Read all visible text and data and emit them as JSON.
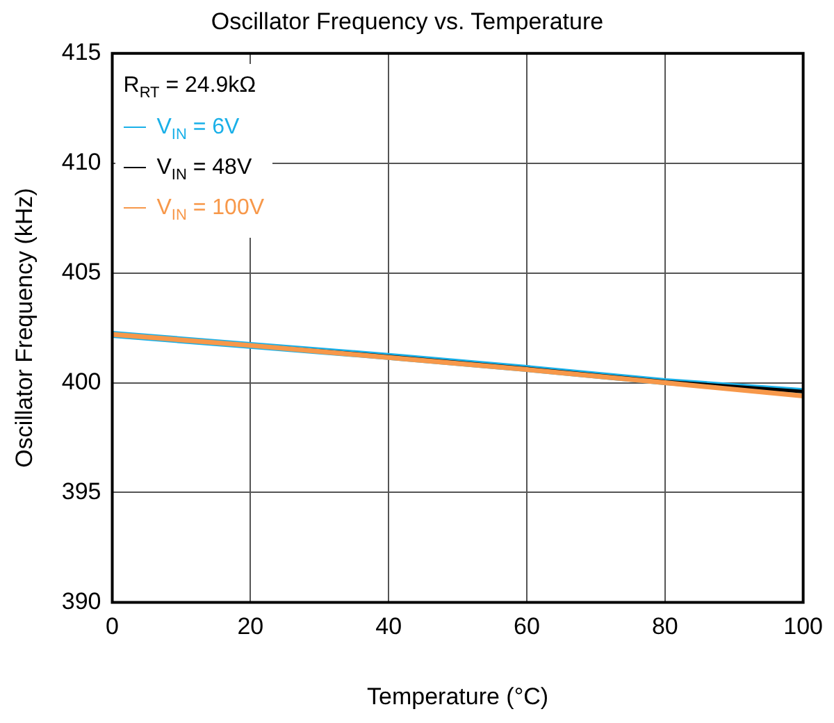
{
  "chart_data": {
    "type": "line",
    "title": "Oscillator Frequency vs. Temperature",
    "xlabel": "Temperature (°C)",
    "ylabel": "Oscillator Frequency (kHz)",
    "x": [
      0,
      20,
      40,
      60,
      80,
      100
    ],
    "series": [
      {
        "name": "V$_{IN}$ = 6V",
        "color": "#1ab0e8",
        "values": [
          402.2,
          401.7,
          401.2,
          400.65,
          400.05,
          399.6
        ]
      },
      {
        "name": "V$_{IN}$ = 48V",
        "color": "#000000",
        "values": [
          402.2,
          401.7,
          401.2,
          400.65,
          400.05,
          399.6
        ]
      },
      {
        "name": "V$_{IN}$ = 100V",
        "color": "#f7984a",
        "values": [
          402.2,
          401.7,
          401.15,
          400.6,
          400.0,
          399.4
        ]
      }
    ],
    "annotations": [
      "R$_{RT}$ = 24.9kΩ"
    ],
    "xlim": [
      0,
      100
    ],
    "xticks": [
      0,
      20,
      40,
      60,
      80,
      100
    ],
    "ylim": [
      390,
      415
    ],
    "yticks": [
      390,
      395,
      400,
      405,
      410,
      415
    ],
    "grid": true,
    "legend": "top left",
    "marker": "none",
    "line_style": "solid"
  }
}
